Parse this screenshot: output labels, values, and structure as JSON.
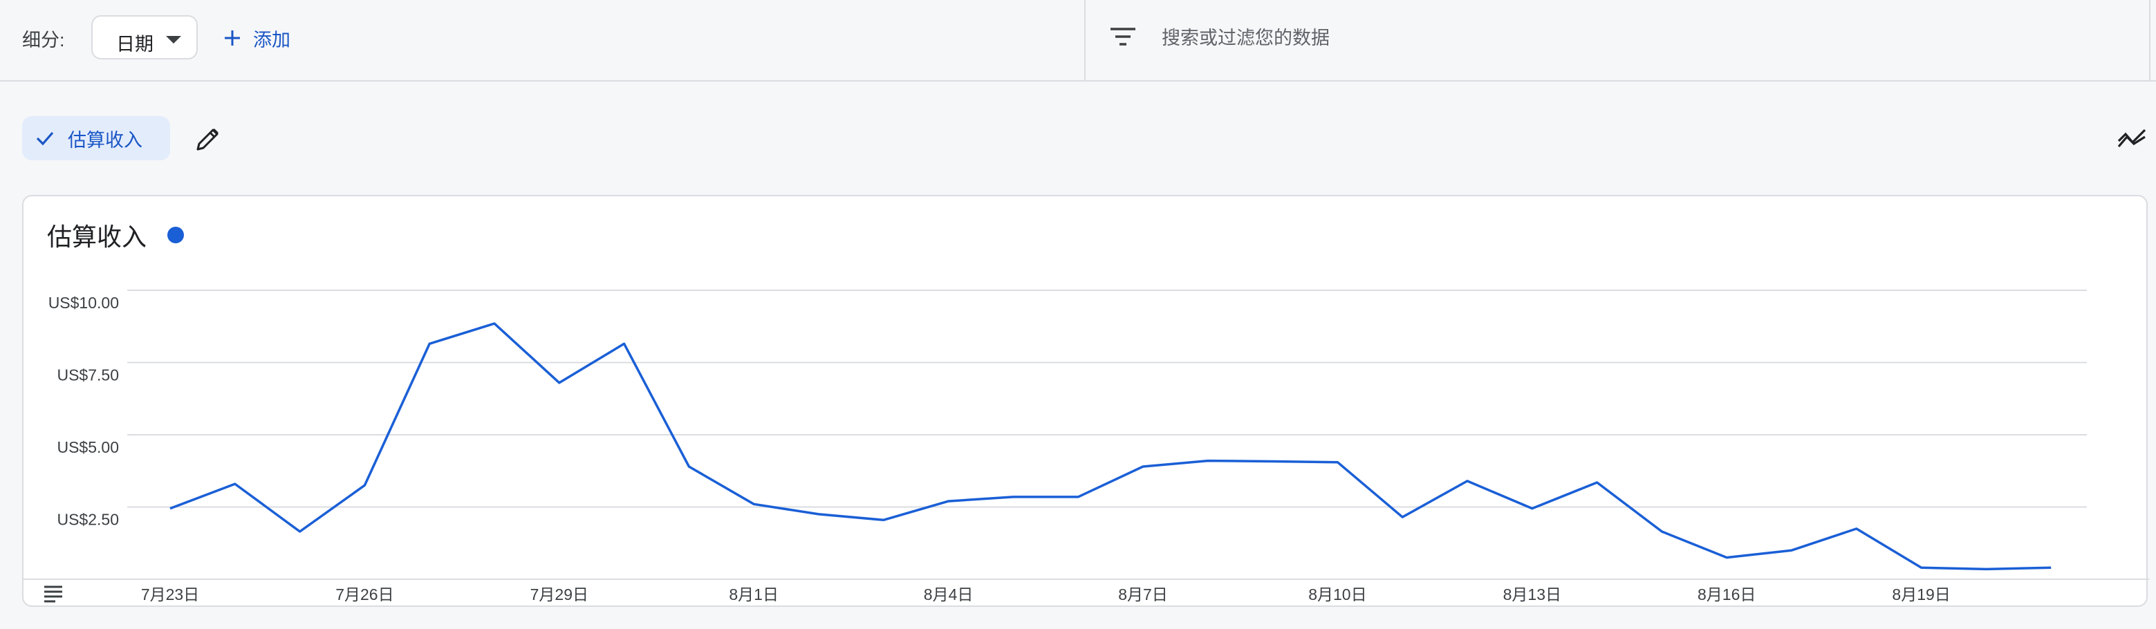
{
  "toolbar": {
    "segment_label": "细分:",
    "segment_value": "日期",
    "add_label": "添加",
    "search_placeholder": "搜索或过滤您的数据"
  },
  "metric_chip": {
    "label": "估算收入"
  },
  "card": {
    "title": "估算收入"
  },
  "colors": {
    "accent": "#1a56c6",
    "series": "#1a5fd6",
    "chip_bg": "#e3ecfb"
  },
  "icons": [
    "chevron-down-icon",
    "plus-icon",
    "filter-icon",
    "check-icon",
    "pencil-icon",
    "trend-compare-icon",
    "table-icon"
  ],
  "chart_data": {
    "type": "line",
    "ylim": [
      0,
      10
    ],
    "y_ticks": [
      2.5,
      5,
      7.5,
      10
    ],
    "y_tick_labels": [
      "US$2.50",
      "US$5.00",
      "US$7.50",
      "US$10.00"
    ],
    "x_tick_labels": [
      "7月23日",
      "7月26日",
      "7月29日",
      "8月1日",
      "8月4日",
      "8月7日",
      "8月10日",
      "8月13日",
      "8月16日",
      "8月19日"
    ],
    "x_tick_index": [
      0,
      3,
      6,
      9,
      12,
      15,
      18,
      21,
      24,
      27
    ],
    "grid": true,
    "series": [
      {
        "values": [
          2.45,
          3.3,
          1.65,
          3.25,
          8.15,
          8.85,
          6.8,
          8.15,
          3.9,
          2.6,
          2.25,
          2.05,
          2.7,
          2.85,
          2.85,
          3.9,
          4.1,
          4.08,
          4.05,
          2.15,
          3.4,
          2.45,
          3.35,
          1.65,
          0.75,
          1.0,
          1.75,
          0.4,
          0.35,
          0.4
        ]
      }
    ]
  }
}
